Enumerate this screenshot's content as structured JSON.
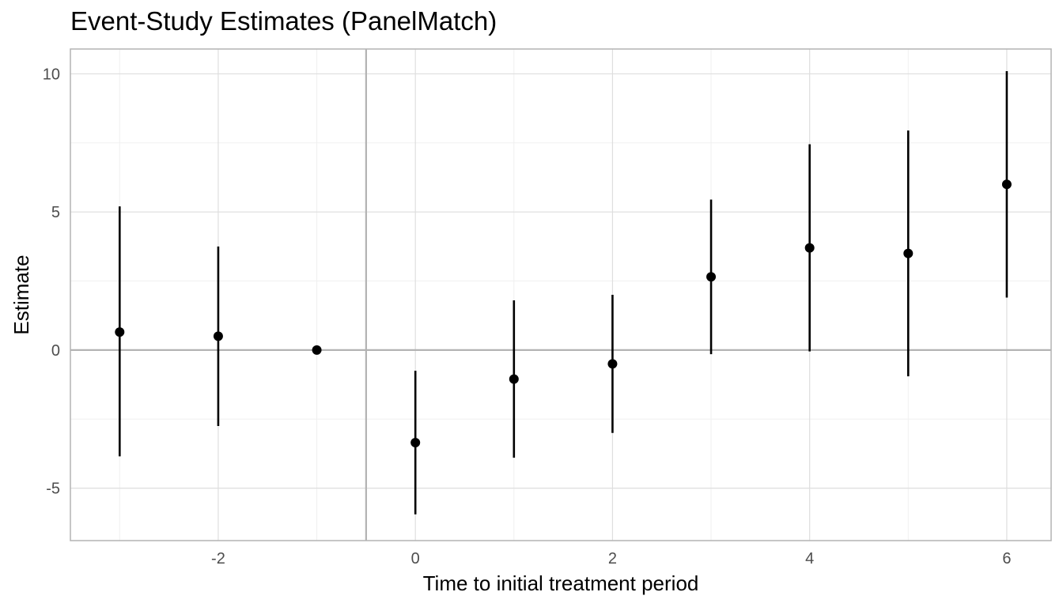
{
  "chart_data": {
    "type": "scatter",
    "title": "Event-Study Estimates (PanelMatch)",
    "xlabel": "Time to initial treatment period",
    "ylabel": "Estimate",
    "xlim": [
      -3.5,
      6.45
    ],
    "ylim": [
      -6.9,
      10.9
    ],
    "x_ticks": [
      -2,
      0,
      2,
      4,
      6
    ],
    "y_ticks": [
      -5,
      0,
      5,
      10
    ],
    "grid": true,
    "reference_lines": {
      "horizontal_y": 0,
      "vertical_x": -0.5
    },
    "series": [
      {
        "points": [
          {
            "x": -3,
            "estimate": 0.65,
            "lower": -3.85,
            "upper": 5.2
          },
          {
            "x": -2,
            "estimate": 0.5,
            "lower": -2.75,
            "upper": 3.75
          },
          {
            "x": -1,
            "estimate": 0.0,
            "lower": 0.0,
            "upper": 0.0
          },
          {
            "x": 0,
            "estimate": -3.35,
            "lower": -5.95,
            "upper": -0.75
          },
          {
            "x": 1,
            "estimate": -1.05,
            "lower": -3.9,
            "upper": 1.8
          },
          {
            "x": 2,
            "estimate": -0.5,
            "lower": -3.0,
            "upper": 2.0
          },
          {
            "x": 3,
            "estimate": 2.65,
            "lower": -0.15,
            "upper": 5.45
          },
          {
            "x": 4,
            "estimate": 3.7,
            "lower": -0.05,
            "upper": 7.45
          },
          {
            "x": 5,
            "estimate": 3.5,
            "lower": -0.95,
            "upper": 7.95
          },
          {
            "x": 6,
            "estimate": 6.0,
            "lower": 1.9,
            "upper": 10.1
          }
        ]
      }
    ],
    "colors": {
      "point": "#000000",
      "errorbar": "#000000",
      "grid_major": "#dedede",
      "grid_minor": "#f0f0f0",
      "panel_border": "#b3b3b3",
      "reference_line": "#b3b3b3"
    }
  }
}
